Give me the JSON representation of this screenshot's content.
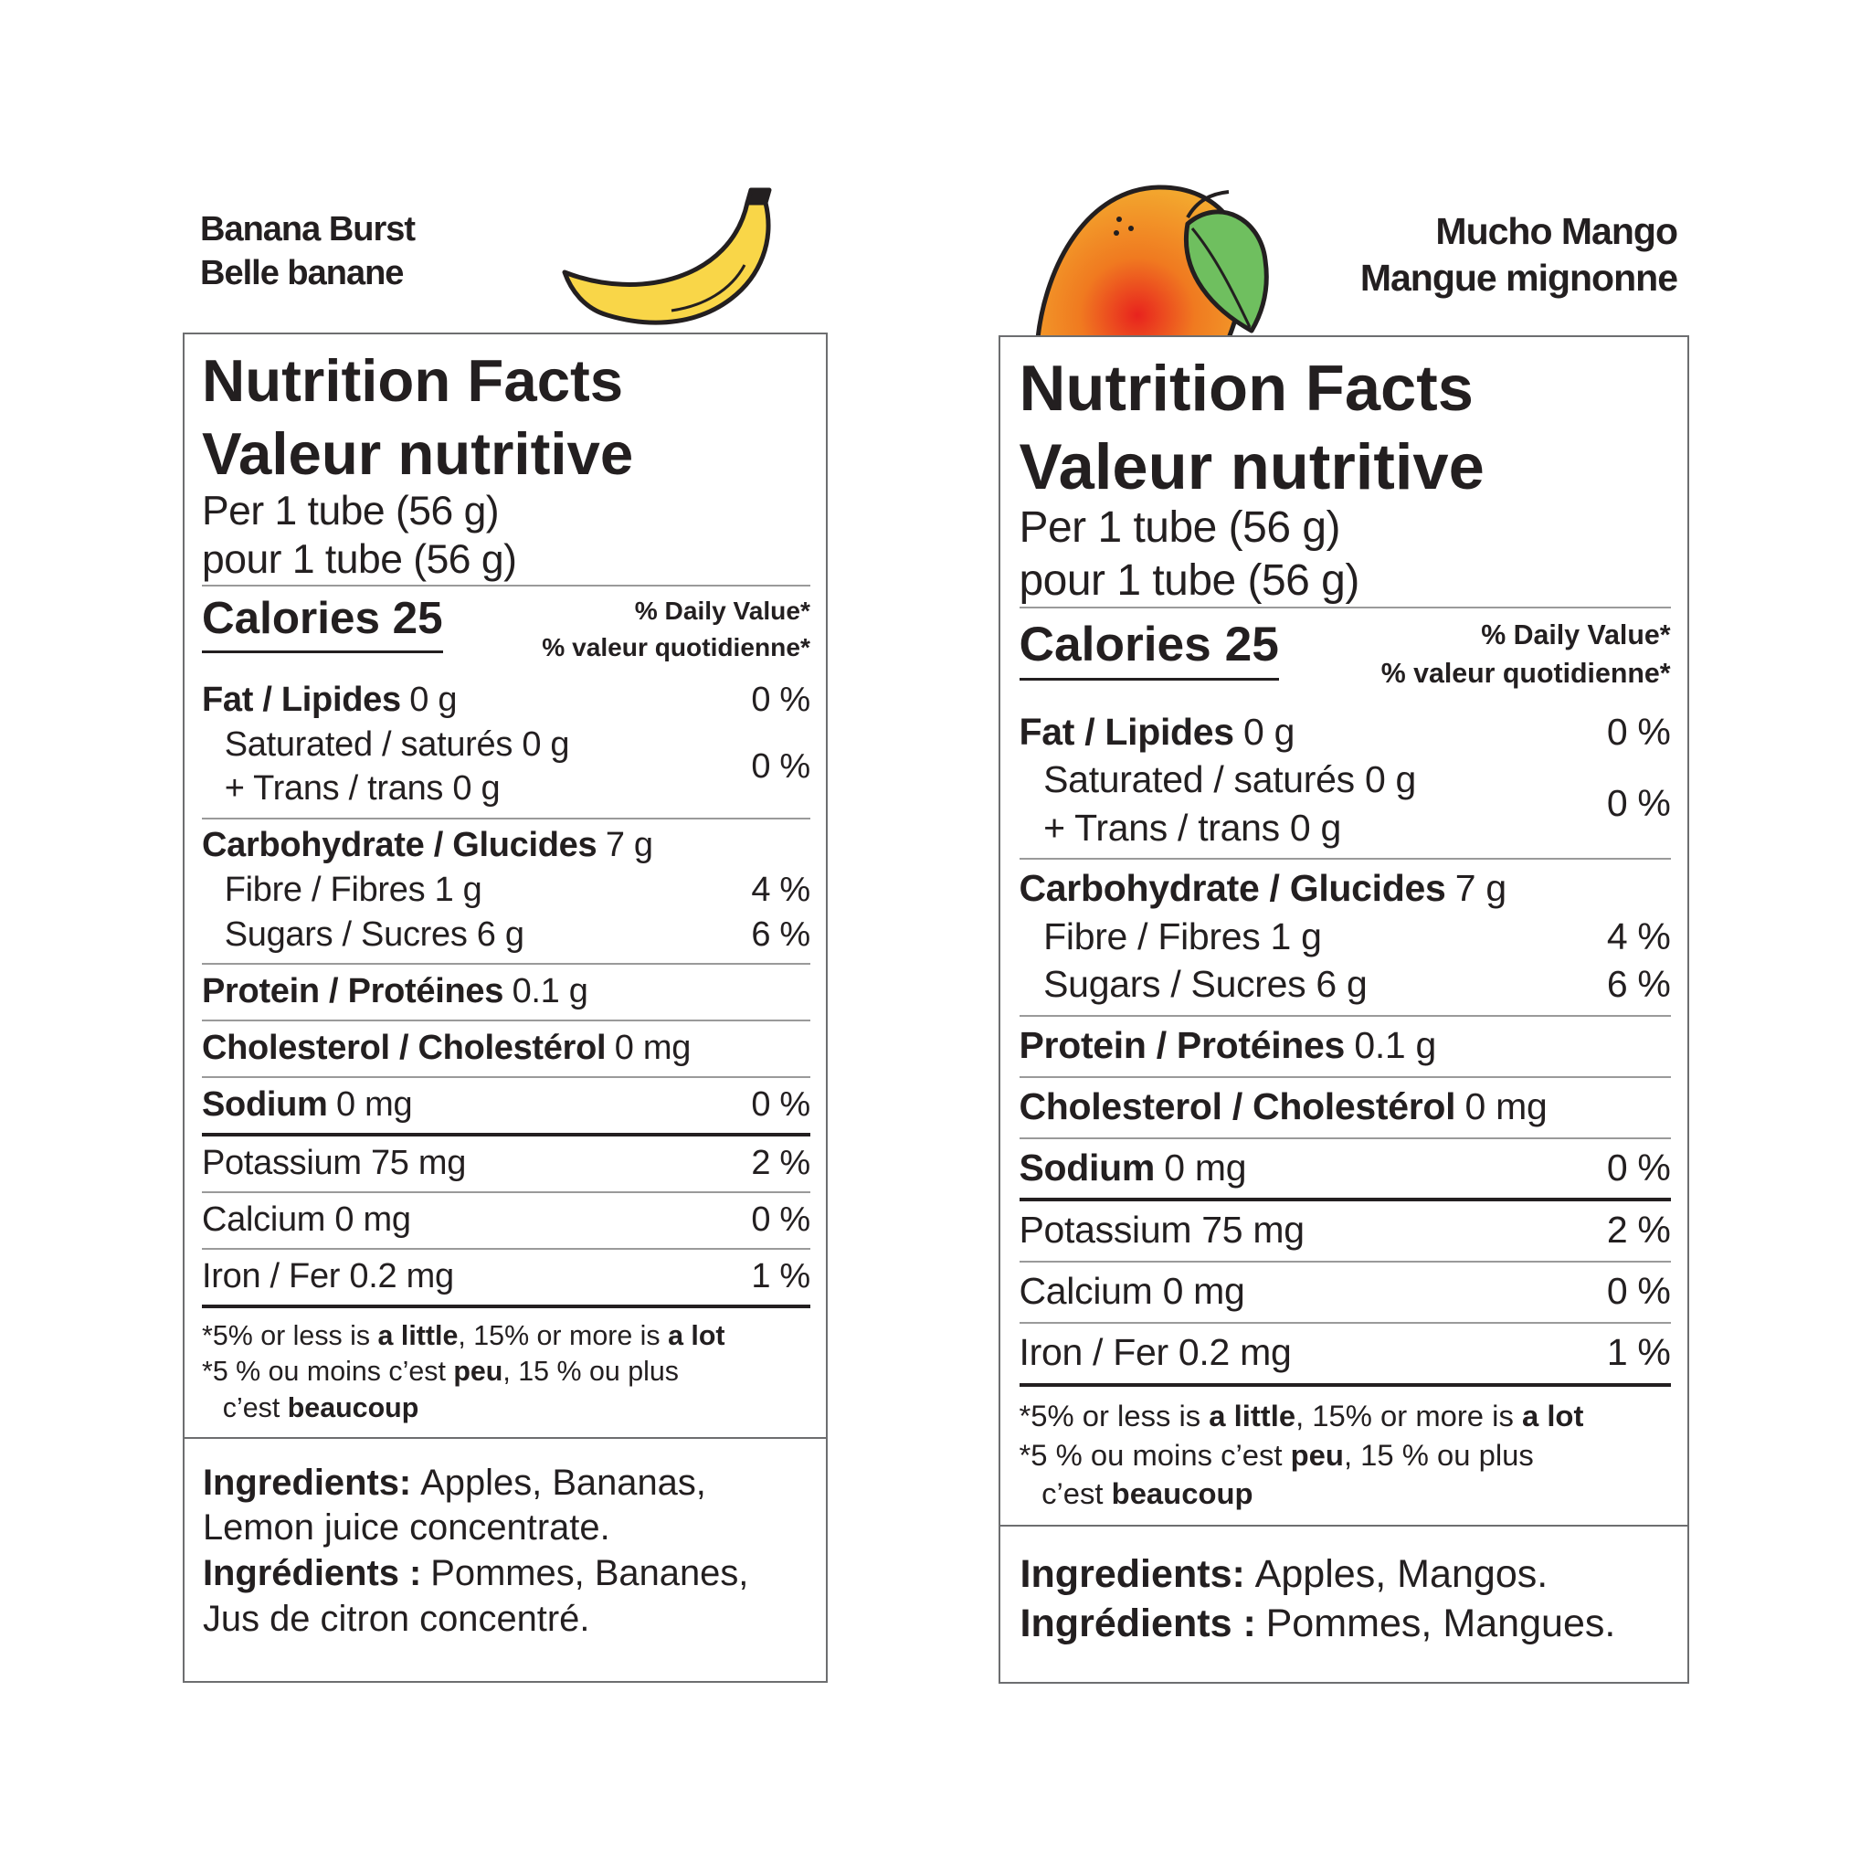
{
  "labels": [
    {
      "product": {
        "en": "Banana Burst",
        "fr": "Belle banane"
      },
      "title": {
        "en": "Nutrition Facts",
        "fr": "Valeur nutritive"
      },
      "serving": {
        "en": "Per 1 tube (56 g)",
        "fr": "pour 1 tube (56 g)"
      },
      "calories": "Calories 25",
      "daily_value": {
        "en": "% Daily Value*",
        "fr": "% valeur quotidienne*"
      },
      "fat": {
        "name": "Fat / Lipides",
        "amount": "0 g",
        "dv": "0 %"
      },
      "saturated_trans": {
        "saturated": "Saturated / saturés 0 g",
        "trans": "+ Trans / trans 0 g",
        "dv": "0 %"
      },
      "carbohydrate": {
        "name": "Carbohydrate / Glucides",
        "amount": "7 g"
      },
      "fibre": {
        "name": "Fibre / Fibres 1 g",
        "dv": "4 %"
      },
      "sugars": {
        "name": "Sugars / Sucres 6 g",
        "dv": "6 %"
      },
      "protein": {
        "name": "Protein / Protéines",
        "amount": "0.1 g"
      },
      "cholesterol": {
        "name": "Cholesterol / Cholestérol",
        "amount": "0 mg"
      },
      "sodium": {
        "name": "Sodium",
        "amount": "0 mg",
        "dv": "0 %"
      },
      "potassium": {
        "name": "Potassium 75 mg",
        "dv": "2 %"
      },
      "calcium": {
        "name": "Calcium 0 mg",
        "dv": "0 %"
      },
      "iron": {
        "name": "Iron / Fer 0.2 mg",
        "dv": "1 %"
      },
      "footnote": {
        "en": [
          "*5% or less is ",
          "a little",
          ", 15% or more is ",
          "a lot"
        ],
        "fr": [
          "*5 % ou moins c’est ",
          "peu",
          ", 15 % ou plus"
        ],
        "fr_cont": [
          "c’est ",
          "beaucoup"
        ]
      },
      "ingredients": {
        "en": {
          "label": "Ingredients:",
          "text": "Apples, Bananas, Lemon juice concentrate."
        },
        "fr": {
          "label": "Ingrédients :",
          "text": "Pommes, Bananes, Jus de citron concentré."
        }
      }
    },
    {
      "product": {
        "en": "Mucho Mango",
        "fr": "Mangue mignonne"
      },
      "title": {
        "en": "Nutrition Facts",
        "fr": "Valeur nutritive"
      },
      "serving": {
        "en": "Per 1 tube (56 g)",
        "fr": "pour 1 tube (56 g)"
      },
      "calories": "Calories 25",
      "daily_value": {
        "en": "% Daily Value*",
        "fr": "% valeur quotidienne*"
      },
      "fat": {
        "name": "Fat / Lipides",
        "amount": "0 g",
        "dv": "0 %"
      },
      "saturated_trans": {
        "saturated": "Saturated / saturés 0 g",
        "trans": "+ Trans / trans 0 g",
        "dv": "0 %"
      },
      "carbohydrate": {
        "name": "Carbohydrate / Glucides",
        "amount": "7 g"
      },
      "fibre": {
        "name": "Fibre / Fibres 1 g",
        "dv": "4 %"
      },
      "sugars": {
        "name": "Sugars / Sucres 6 g",
        "dv": "6 %"
      },
      "protein": {
        "name": "Protein / Protéines",
        "amount": "0.1 g"
      },
      "cholesterol": {
        "name": "Cholesterol / Cholestérol",
        "amount": "0 mg"
      },
      "sodium": {
        "name": "Sodium",
        "amount": "0 mg",
        "dv": "0 %"
      },
      "potassium": {
        "name": "Potassium 75 mg",
        "dv": "2 %"
      },
      "calcium": {
        "name": "Calcium 0 mg",
        "dv": "0 %"
      },
      "iron": {
        "name": "Iron / Fer 0.2 mg",
        "dv": "1 %"
      },
      "footnote": {
        "en": [
          "*5% or less is ",
          "a little",
          ", 15% or more is ",
          "a lot"
        ],
        "fr": [
          "*5 % ou moins c’est ",
          "peu",
          ", 15 % ou plus"
        ],
        "fr_cont": [
          "c’est ",
          "beaucoup"
        ]
      },
      "ingredients": {
        "en": {
          "label": "Ingredients:",
          "text": "Apples, Mangos."
        },
        "fr": {
          "label": "Ingrédients :",
          "text": "Pommes, Mangues."
        }
      }
    }
  ]
}
